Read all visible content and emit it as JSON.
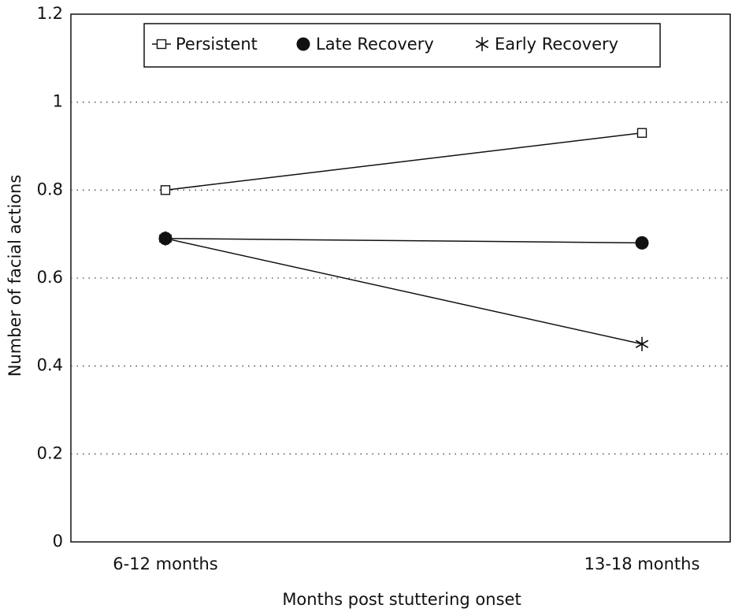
{
  "chart_data": {
    "type": "line",
    "categories": [
      "6-12 months",
      "13-18 months"
    ],
    "series": [
      {
        "name": "Persistent",
        "color": "#111111",
        "marker": "square",
        "values": [
          0.8,
          0.93
        ]
      },
      {
        "name": "Late Recovery",
        "color": "#111111",
        "marker": "circle",
        "values": [
          0.69,
          0.68
        ]
      },
      {
        "name": "Early Recovery",
        "color": "#111111",
        "marker": "asterisk",
        "values": [
          0.69,
          0.45
        ]
      }
    ],
    "xlabel": "Months post stuttering onset",
    "ylabel": "Number of facial actions",
    "ylim": [
      0,
      1.2
    ],
    "yticks": [
      0,
      0.2,
      0.4,
      0.6,
      0.8,
      1,
      1.2
    ],
    "grid": true,
    "legend": "top"
  }
}
